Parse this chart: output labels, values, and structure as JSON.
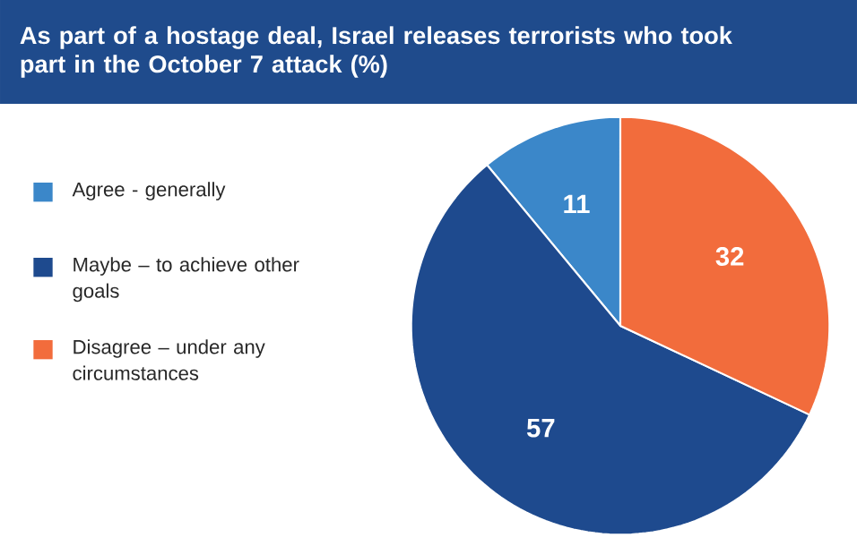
{
  "chart_data": {
    "type": "pie",
    "title": "As part of a hostage deal, Israel releases terrorists who took part in the October 7 attack (%)",
    "categories": [
      "Agree - generally",
      "Maybe – to achieve other goals",
      "Disagree – under any circumstances"
    ],
    "values": [
      11,
      57,
      32
    ],
    "colors": [
      "#3b87c9",
      "#1e4a8e",
      "#f26c3c"
    ],
    "data_labels": true,
    "legend": "left"
  }
}
